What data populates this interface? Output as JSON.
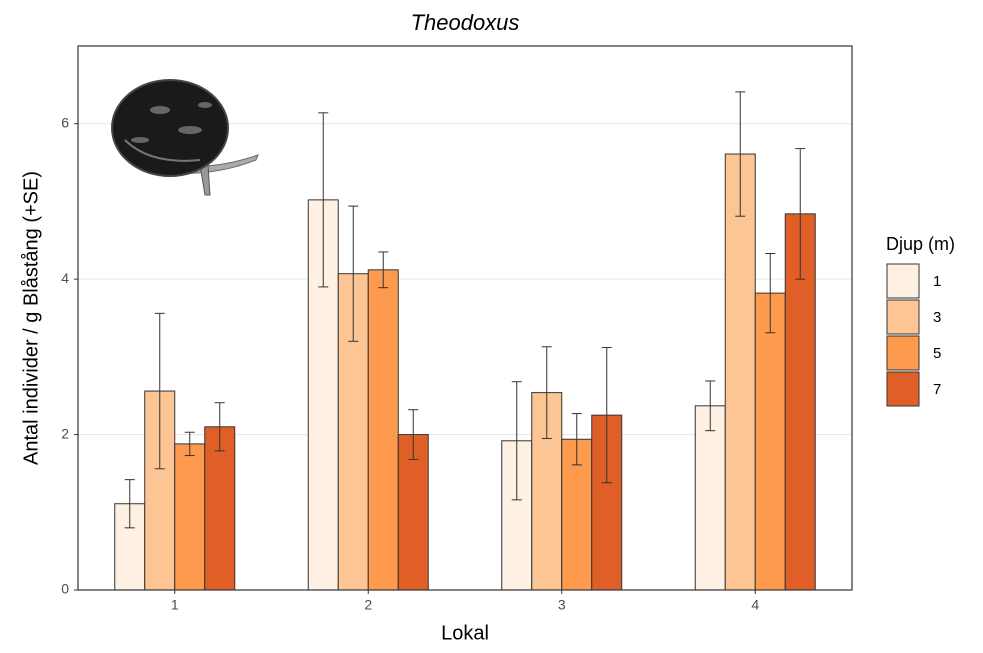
{
  "chart_data": {
    "type": "bar",
    "title": "Theodoxus",
    "x_label": "Lokal",
    "y_label": "Antal individer / g Blåstång (+SE)",
    "legend_title": "Djup (m)",
    "legend_position": "right",
    "categories": [
      "1",
      "2",
      "3",
      "4"
    ],
    "series": [
      {
        "name": "1",
        "color": "#fef0e3",
        "values": [
          1.11,
          5.02,
          1.92,
          2.37
        ],
        "errors": [
          0.31,
          1.12,
          0.76,
          0.32
        ]
      },
      {
        "name": "3",
        "color": "#fdc593",
        "values": [
          2.56,
          4.07,
          2.54,
          5.61
        ],
        "errors": [
          1.0,
          0.87,
          0.59,
          0.8
        ]
      },
      {
        "name": "5",
        "color": "#fd9a4e",
        "values": [
          1.88,
          4.12,
          1.94,
          3.82
        ],
        "errors": [
          0.15,
          0.23,
          0.33,
          0.51
        ]
      },
      {
        "name": "7",
        "color": "#e05f27",
        "values": [
          2.1,
          2.0,
          2.25,
          4.84
        ],
        "errors": [
          0.31,
          0.32,
          0.87,
          0.84
        ]
      }
    ],
    "ylim": [
      0,
      7
    ],
    "yticks": [
      0,
      2,
      4,
      6
    ],
    "grid": true
  }
}
